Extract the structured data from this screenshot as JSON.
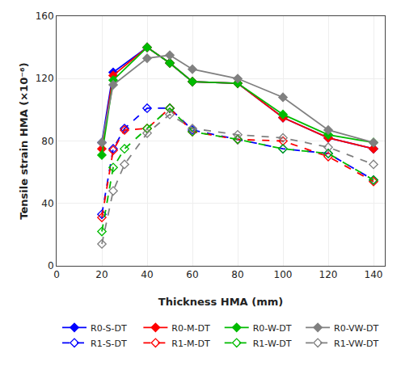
{
  "chart_data": {
    "type": "line",
    "x_label": "Thickness HMA (mm)",
    "y_label": "Tensile strain HMA (×10⁻⁶)",
    "xlim": [
      0,
      145
    ],
    "ylim": [
      0,
      160
    ],
    "xticks": [
      0,
      20,
      40,
      60,
      80,
      100,
      120,
      140
    ],
    "yticks": [
      0,
      40,
      80,
      120,
      160
    ],
    "grid": true,
    "legend": "bottom",
    "series": [
      {
        "name": "R0-S-DT",
        "color": "#0000FF",
        "line_style": "solid",
        "marker": "diamond",
        "x": [
          20,
          25,
          40,
          50,
          60,
          80,
          100,
          120,
          140
        ],
        "values": [
          79,
          124,
          140,
          130,
          118,
          117,
          95,
          82,
          75
        ]
      },
      {
        "name": "R0-M-DT",
        "color": "#FF0000",
        "line_style": "solid",
        "marker": "diamond",
        "x": [
          20,
          25,
          40,
          50,
          60,
          80,
          100,
          120,
          140
        ],
        "values": [
          75,
          122,
          140,
          130,
          118,
          117,
          95,
          82,
          75
        ]
      },
      {
        "name": "R0-W-DT",
        "color": "#00BB00",
        "line_style": "solid",
        "marker": "diamond",
        "x": [
          20,
          25,
          40,
          50,
          60,
          80,
          100,
          120,
          140
        ],
        "values": [
          71,
          119,
          140,
          130,
          118,
          117,
          97,
          84,
          79
        ]
      },
      {
        "name": "R0-VW-DT",
        "color": "#808080",
        "line_style": "solid",
        "marker": "diamond",
        "x": [
          20,
          25,
          40,
          50,
          60,
          80,
          100,
          120,
          140
        ],
        "values": [
          79,
          116,
          133,
          135,
          126,
          120,
          108,
          87,
          79
        ]
      },
      {
        "name": "R1-S-DT",
        "color": "#0000FF",
        "line_style": "dashed",
        "marker": "diamond-open",
        "x": [
          20,
          25,
          30,
          40,
          50,
          60,
          80,
          100,
          120,
          140
        ],
        "values": [
          33,
          75,
          88,
          101,
          101,
          87,
          81,
          75,
          72,
          55
        ]
      },
      {
        "name": "R1-M-DT",
        "color": "#FF0000",
        "line_style": "dashed",
        "marker": "diamond-open",
        "x": [
          20,
          25,
          30,
          40,
          50,
          60,
          80,
          100,
          120,
          140
        ],
        "values": [
          31,
          74,
          87,
          88,
          101,
          86,
          81,
          80,
          70,
          54
        ]
      },
      {
        "name": "R1-W-DT",
        "color": "#00BB00",
        "line_style": "dashed",
        "marker": "diamond-open",
        "x": [
          20,
          25,
          30,
          40,
          50,
          60,
          80,
          100,
          120,
          140
        ],
        "values": [
          22,
          63,
          75,
          88,
          101,
          86,
          81,
          75,
          72,
          55
        ]
      },
      {
        "name": "R1-VW-DT",
        "color": "#808080",
        "line_style": "dashed",
        "marker": "diamond-open",
        "x": [
          20,
          25,
          30,
          40,
          50,
          60,
          80,
          100,
          120,
          140
        ],
        "values": [
          14,
          48,
          65,
          85,
          97,
          88,
          84,
          82,
          76,
          65
        ]
      }
    ]
  }
}
